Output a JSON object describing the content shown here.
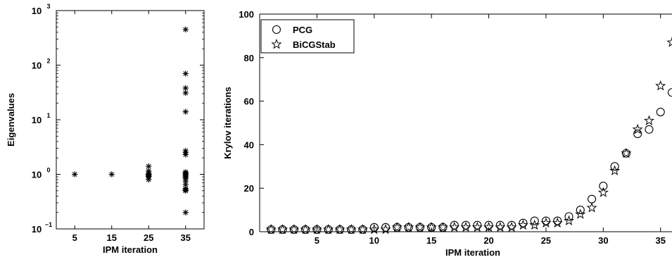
{
  "chart_data": [
    {
      "type": "scatter",
      "xlabel": "IPM iteration",
      "ylabel": "Eigenvalues",
      "yscale": "log",
      "xlim": [
        0,
        40
      ],
      "ylim": [
        0.1,
        1000
      ],
      "xticks": [
        5,
        15,
        25,
        35
      ],
      "yticks": [
        {
          "value": 0.1,
          "base": "10",
          "exp": "−1"
        },
        {
          "value": 1,
          "base": "10",
          "exp": "0"
        },
        {
          "value": 10,
          "base": "10",
          "exp": "1"
        },
        {
          "value": 100,
          "base": "10",
          "exp": "2"
        },
        {
          "value": 1000,
          "base": "10",
          "exp": "3"
        }
      ],
      "grid": false,
      "marker": "asterisk",
      "series": [
        {
          "points": [
            [
              5,
              1.0
            ],
            [
              15,
              1.0
            ],
            [
              25,
              1.4
            ],
            [
              25,
              1.15
            ],
            [
              25,
              1.05
            ],
            [
              25,
              1.0
            ],
            [
              25,
              0.97
            ],
            [
              25,
              0.93
            ],
            [
              25,
              0.9
            ],
            [
              25,
              0.8
            ],
            [
              35,
              450
            ],
            [
              35,
              70
            ],
            [
              35,
              38
            ],
            [
              35,
              31
            ],
            [
              35,
              14
            ],
            [
              35,
              2.7
            ],
            [
              35,
              2.5
            ],
            [
              35,
              2.3
            ],
            [
              35,
              1.1
            ],
            [
              35,
              1.05
            ],
            [
              35,
              1.0
            ],
            [
              35,
              0.95
            ],
            [
              35,
              0.9
            ],
            [
              35,
              0.85
            ],
            [
              35,
              0.75
            ],
            [
              35,
              0.65
            ],
            [
              35,
              0.55
            ],
            [
              35,
              0.52
            ],
            [
              35,
              0.5
            ],
            [
              35,
              0.2
            ]
          ]
        }
      ]
    },
    {
      "type": "scatter",
      "xlabel": "IPM iteration",
      "ylabel": "Krylov iterations",
      "xlim": [
        0,
        36
      ],
      "ylim": [
        0,
        100
      ],
      "xticks": [
        5,
        10,
        15,
        20,
        25,
        30,
        35
      ],
      "yticks": [
        0,
        20,
        40,
        60,
        80,
        100
      ],
      "grid": false,
      "legend": "top-left",
      "series": [
        {
          "name": "PCG",
          "marker": "circle",
          "x": [
            1,
            2,
            3,
            4,
            5,
            6,
            7,
            8,
            9,
            10,
            11,
            12,
            13,
            14,
            15,
            16,
            17,
            18,
            19,
            20,
            21,
            22,
            23,
            24,
            25,
            26,
            27,
            28,
            29,
            30,
            31,
            32,
            33,
            34,
            35,
            36
          ],
          "y": [
            1,
            1,
            1,
            1,
            1,
            1,
            1,
            1,
            1,
            2,
            2,
            2,
            2,
            2,
            2,
            2,
            3,
            3,
            3,
            3,
            3,
            3,
            4,
            5,
            5,
            5,
            7,
            10,
            15,
            21,
            30,
            36,
            45,
            47,
            55,
            64
          ]
        },
        {
          "name": "BiCGStab",
          "marker": "star",
          "x": [
            1,
            2,
            3,
            4,
            5,
            6,
            7,
            8,
            9,
            10,
            11,
            12,
            13,
            14,
            15,
            16,
            17,
            18,
            19,
            20,
            21,
            22,
            23,
            24,
            25,
            26,
            27,
            28,
            29,
            30,
            31,
            32,
            33,
            34,
            35,
            36
          ],
          "y": [
            1,
            1,
            1,
            1,
            1,
            1,
            1,
            1,
            1,
            1,
            1,
            2,
            2,
            2,
            2,
            2,
            2,
            2,
            2,
            2,
            2,
            2,
            3,
            3,
            4,
            4,
            5,
            8,
            11,
            18,
            28,
            36,
            47,
            51,
            67,
            87
          ]
        }
      ]
    }
  ]
}
